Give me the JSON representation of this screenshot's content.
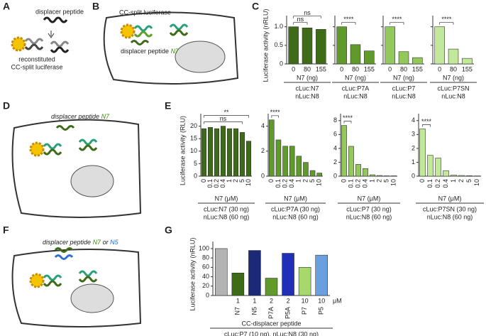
{
  "panel_labels": [
    "A",
    "B",
    "C",
    "D",
    "E",
    "F",
    "G"
  ],
  "diagrams": [
    {
      "labels": [
        "displacer peptide",
        "reconstituted",
        "CC-split luciferase"
      ]
    },
    {
      "labels": [
        "CC-split luciferase",
        "displacer peptide",
        "N7"
      ]
    },
    {
      "labels": [
        "displacer peptide",
        "N7"
      ]
    },
    {
      "labels": [
        "displacer peptide",
        "N7",
        "or",
        "N5"
      ]
    }
  ],
  "chart_data": [
    {
      "type": "bar",
      "ylabel": "Luciferase activity (nRLU)",
      "categories": [
        "0",
        "80",
        "155"
      ],
      "values": [
        1.0,
        0.97,
        0.93
      ],
      "color": "#3d6b17",
      "ylim": [
        0,
        1.3
      ],
      "yticks": [
        0,
        0.5,
        {
          "value": 1,
          "label": "1.0"
        }
      ],
      "xlabel": "N7 (ng)",
      "constructs": [
        "cLuc:N7",
        "nLuc:N8"
      ],
      "annotations": [
        {
          "label": "ns",
          "between": [
            "0",
            "80"
          ]
        },
        {
          "label": "ns",
          "between": [
            "0",
            "155"
          ]
        }
      ]
    },
    {
      "type": "bar",
      "categories": [
        "0",
        "80",
        "155"
      ],
      "values": [
        1.0,
        0.52,
        0.35
      ],
      "color": "#5f9a2a",
      "ylim": [
        0,
        1.3
      ],
      "xlabel": "N7 (ng)",
      "constructs": [
        "cLuc:P7A",
        "nLuc:N8"
      ],
      "annotations": [
        {
          "label": "****",
          "between": [
            "0",
            "80"
          ]
        }
      ]
    },
    {
      "type": "bar",
      "categories": [
        "0",
        "80",
        "155"
      ],
      "values": [
        1.0,
        0.33,
        0.17
      ],
      "color": "#93c95a",
      "ylim": [
        0,
        1.3
      ],
      "xlabel": "N7 (ng)",
      "constructs": [
        "cLuc:P7",
        "nLuc:N8"
      ],
      "annotations": [
        {
          "label": "****",
          "between": [
            "0",
            "80"
          ]
        }
      ]
    },
    {
      "type": "bar",
      "categories": [
        "0",
        "80",
        "155"
      ],
      "values": [
        1.0,
        0.4,
        0.15
      ],
      "color": "#c2e89a",
      "ylim": [
        0,
        1.3
      ],
      "xlabel": "N7 (ng)",
      "constructs": [
        "cLuc:P7SN",
        "nLuc:N8"
      ],
      "annotations": [
        {
          "label": "****",
          "between": [
            "0",
            "80"
          ]
        }
      ]
    },
    {
      "type": "bar",
      "ylabel": "Luciferase activity (RLU)",
      "categories": [
        "0",
        "0.1",
        "0.2",
        "0.4",
        "1",
        "2",
        "5",
        "10"
      ],
      "values": [
        19,
        19.5,
        19,
        20,
        19,
        19,
        17.5,
        14
      ],
      "color": "#3d6b17",
      "ylim": [
        0,
        25
      ],
      "yticks": [
        0,
        5,
        10,
        15,
        20
      ],
      "xlabel": "N7 (μM)",
      "constructs": [
        "cLuc:N7 (30 ng)",
        "nLuc:N8 (60 ng)"
      ],
      "annotations": [
        {
          "label": "ns",
          "between": [
            "0",
            "5"
          ]
        },
        {
          "label": "**",
          "between": [
            "0",
            "10"
          ]
        }
      ]
    },
    {
      "type": "bar",
      "categories": [
        "0",
        "0.1",
        "0.2",
        "0.4",
        "1",
        "2",
        "5",
        "10"
      ],
      "values": [
        4.5,
        2.9,
        2.4,
        2.4,
        1.6,
        1.1,
        0.45,
        0.25
      ],
      "color": "#5f9a2a",
      "ylim": [
        0,
        5
      ],
      "yticks": [
        0,
        2,
        4
      ],
      "xlabel": "N7 (μM)",
      "constructs": [
        "cLuc:P7A (30 ng)",
        "nLuc:N8 (60 ng)"
      ],
      "annotations": [
        {
          "label": "****",
          "between": [
            "0",
            "0.1"
          ]
        }
      ]
    },
    {
      "type": "bar",
      "categories": [
        "0",
        "0.1",
        "0.2",
        "0.4",
        "1",
        "2",
        "5",
        "10"
      ],
      "values": [
        7.3,
        4.3,
        1.7,
        1.1,
        0.2,
        0.1,
        0.05,
        0.05
      ],
      "color": "#93c95a",
      "ylim": [
        0,
        9
      ],
      "yticks": [
        0,
        2,
        4,
        6,
        8
      ],
      "xlabel": "N7 (μM)",
      "constructs": [
        "cLuc:P7 (30 ng)",
        "nLuc:N8 (60 ng)"
      ],
      "annotations": [
        {
          "label": "****",
          "between": [
            "0",
            "0.1"
          ]
        }
      ]
    },
    {
      "type": "bar",
      "categories": [
        "0",
        "0.1",
        "0.2",
        "0.4",
        "1",
        "2",
        "5",
        "10"
      ],
      "values": [
        3.4,
        1.5,
        1.3,
        0.4,
        0.08,
        0.05,
        0.03,
        0.02
      ],
      "color": "#c2e89a",
      "ylim": [
        0,
        4.5
      ],
      "yticks": [
        0,
        1,
        2,
        3,
        4
      ],
      "xlabel": "N7 (μM)",
      "constructs": [
        "cLuc:P7SN (30 ng)",
        "nLuc:N8 (60 ng)"
      ],
      "annotations": [
        {
          "label": "****",
          "between": [
            "0",
            "0.1"
          ]
        }
      ]
    },
    {
      "type": "bar",
      "ylabel": "Luciferase activity (nRLU)",
      "categories": [
        null,
        "N7",
        "N5",
        "P7A",
        "P5A",
        "P7",
        "P5"
      ],
      "doses": [
        null,
        "1",
        "1",
        "2",
        "2",
        "10",
        "10"
      ],
      "dose_unit": "μM",
      "values": [
        100,
        48,
        96,
        37,
        90,
        60,
        86
      ],
      "colors": [
        "#b3b3b3",
        "#3d6b17",
        "#1a2a78",
        "#5f9a2a",
        "#1f2fb8",
        "#a6d86c",
        "#6a9fe0"
      ],
      "ylim": [
        0,
        115
      ],
      "yticks": [
        0,
        20,
        40,
        60,
        80,
        100
      ],
      "xlabel": "CC-displacer peptide",
      "constructs": [
        "cLuc:P7 (10 ng), nLuc:N8 (30 ng)"
      ]
    }
  ]
}
